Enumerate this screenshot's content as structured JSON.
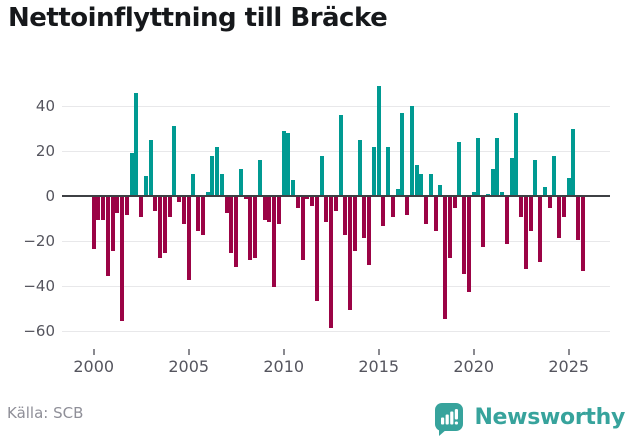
{
  "title": "Nettoinflyttning till Bräcke",
  "footer": {
    "source": "Källa: SCB",
    "brand": "Newsworthy"
  },
  "colors": {
    "positive": "#009a92",
    "negative": "#9b0345",
    "brand": "#37a39c",
    "gridline": "#e8e8ea",
    "baseline": "#3e4044",
    "axis_text": "#55555e",
    "source_text": "#8f8f98"
  },
  "chart_data": {
    "type": "bar",
    "title": "Nettoinflyttning till Bräcke",
    "xlabel": "",
    "ylabel": "",
    "frequency": "quarterly",
    "start_period": "2000 Q1",
    "end_period": "2025 Q4",
    "grid": "horizontal",
    "legend_position": "none",
    "ylim": [
      -67,
      56
    ],
    "y_ticks": [
      40,
      20,
      0,
      -20,
      -40,
      -60
    ],
    "y_tick_labels": [
      "40",
      "20",
      "0",
      "−20",
      "−40",
      "−60"
    ],
    "x_tick_years": [
      2000,
      2005,
      2010,
      2015,
      2020,
      2025
    ],
    "x_tick_labels": [
      "2000",
      "2005",
      "2010",
      "2015",
      "2020",
      "2025"
    ],
    "series": [
      {
        "name": "Nettoinflyttning",
        "values": [
          -23,
          -10,
          -10,
          -35,
          -24,
          -7,
          -55,
          -8,
          19,
          46,
          -9,
          9,
          25,
          -6,
          -27,
          -25,
          -9,
          31,
          -2,
          -12,
          -37,
          10,
          -15,
          -17,
          2,
          18,
          22,
          10,
          -7,
          -25,
          -31,
          12,
          -1,
          -28,
          -27,
          16,
          -10,
          -11,
          -40,
          -12,
          29,
          28,
          7,
          -5,
          -28,
          -1,
          -4,
          -46,
          18,
          -11,
          -58,
          -6,
          36,
          -17,
          -50,
          -24,
          25,
          -18,
          -30,
          22,
          49,
          -13,
          22,
          -9,
          3,
          37,
          -8,
          40,
          14,
          10,
          -12,
          10,
          -15,
          5,
          -54,
          -27,
          -5,
          24,
          -34,
          -42,
          2,
          26,
          -22,
          1,
          12,
          26,
          2,
          -21,
          17,
          37,
          -9,
          -32,
          -15,
          16,
          -29,
          4,
          -5,
          18,
          -18,
          -9,
          8,
          30,
          -19,
          -33
        ]
      }
    ]
  }
}
